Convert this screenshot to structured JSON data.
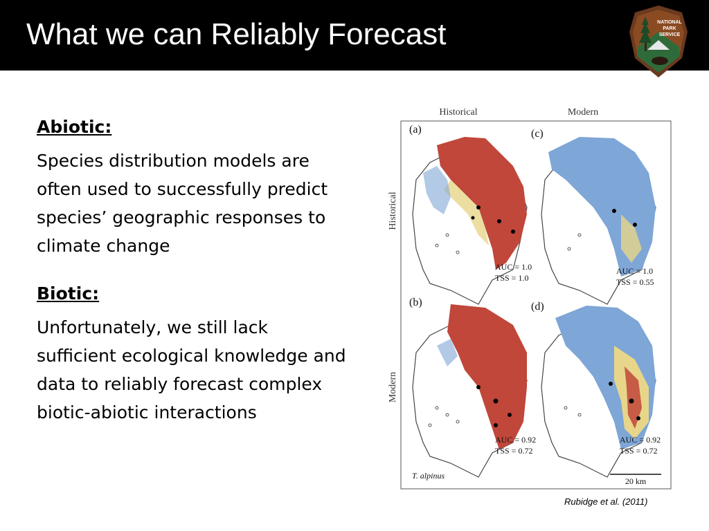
{
  "slide": {
    "title": "What we can Reliably Forecast",
    "logo_lines": [
      "NATIONAL",
      "PARK",
      "SERVICE"
    ]
  },
  "abiotic": {
    "heading": "Abiotic:",
    "body": "Species distribution models are often used to successfully predict species’ geographic responses to climate change"
  },
  "biotic": {
    "heading": "Biotic:",
    "body": "Unfortunately, we still lack sufficient ecological knowledge and data to reliably forecast complex biotic-abiotic interactions"
  },
  "figure": {
    "col_headers": [
      "Historical",
      "Modern"
    ],
    "row_headers": [
      "Historical",
      "Modern"
    ],
    "panels": [
      {
        "label": "(a)",
        "auc": "AUC = 1.0",
        "tss": "TSS = 1.0"
      },
      {
        "label": "(c)",
        "auc": "AUC = 1.0",
        "tss": "TSS = 0.55"
      },
      {
        "label": "(b)",
        "auc": "AUC = 0.92",
        "tss": "TSS = 0.72"
      },
      {
        "label": "(d)",
        "auc": "AUC = 0.92",
        "tss": "TSS = 0.72"
      }
    ],
    "species": "T. alpinus",
    "scale": "20 km",
    "colors": {
      "red": "#c0473a",
      "blue": "#7ea6d6",
      "yellow": "#e7d68a",
      "outline": "#444444"
    }
  },
  "citation": "Rubidge et al. (2011)"
}
